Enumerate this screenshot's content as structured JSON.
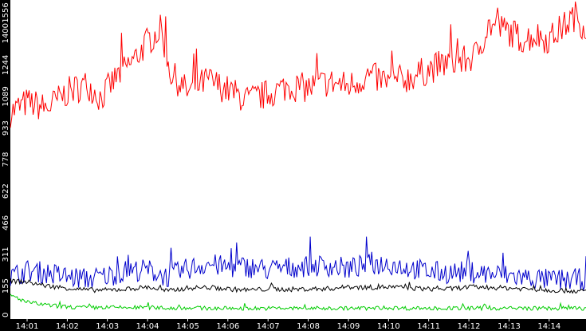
{
  "chart_data": {
    "type": "line",
    "title": "",
    "xlabel": "",
    "ylabel": "",
    "x_range": [
      "14:00:35",
      "14:14:55"
    ],
    "ylim": [
      0,
      1556
    ],
    "y_ticks": [
      0,
      155,
      311,
      466,
      622,
      778,
      933,
      1089,
      1244,
      1400,
      1556
    ],
    "x_ticks": [
      "14:01",
      "14:02",
      "14:03",
      "14:04",
      "14:05",
      "14:06",
      "14:07",
      "14:08",
      "14:09",
      "14:10",
      "14:11",
      "14:12",
      "14:13",
      "14:14"
    ],
    "grid": false,
    "legend": "none",
    "background": "#ffffff",
    "axis_color": "#000000",
    "tick_label_color": "#ffffff",
    "series": [
      {
        "color": "#ff0000",
        "x": [
          "14:00:35",
          "14:01:00",
          "14:01:30",
          "14:02:00",
          "14:02:30",
          "14:02:50",
          "14:03:15",
          "14:03:40",
          "14:04:00",
          "14:04:20",
          "14:04:35",
          "14:05:00",
          "14:05:30",
          "14:06:00",
          "14:06:30",
          "14:07:00",
          "14:07:30",
          "14:08:00",
          "14:08:30",
          "14:09:00",
          "14:09:30",
          "14:10:00",
          "14:10:30",
          "14:11:00",
          "14:11:30",
          "14:11:50",
          "14:12:10",
          "14:12:30",
          "14:13:00",
          "14:13:20",
          "14:13:40",
          "14:14:00",
          "14:14:20",
          "14:14:40",
          "14:14:55"
        ],
        "values": [
          1010,
          1060,
          1030,
          1110,
          1150,
          1080,
          1190,
          1270,
          1360,
          1420,
          1200,
          1110,
          1170,
          1120,
          1070,
          1100,
          1140,
          1130,
          1160,
          1140,
          1190,
          1160,
          1180,
          1220,
          1260,
          1260,
          1290,
          1440,
          1410,
          1370,
          1390,
          1370,
          1430,
          1490,
          1420
        ],
        "noise": 75
      },
      {
        "color": "#0000cc",
        "x": [
          "14:00:35",
          "14:01:00",
          "14:01:30",
          "14:02:00",
          "14:02:30",
          "14:03:00",
          "14:03:30",
          "14:04:00",
          "14:04:30",
          "14:05:00",
          "14:05:30",
          "14:06:00",
          "14:06:30",
          "14:07:00",
          "14:07:30",
          "14:08:00",
          "14:08:30",
          "14:09:00",
          "14:09:30",
          "14:10:00",
          "14:10:30",
          "14:11:00",
          "14:11:30",
          "14:12:00",
          "14:12:30",
          "14:13:00",
          "14:13:30",
          "14:14:00",
          "14:14:30",
          "14:14:55"
        ],
        "values": [
          200,
          230,
          220,
          200,
          190,
          205,
          230,
          235,
          200,
          240,
          265,
          245,
          250,
          235,
          245,
          255,
          255,
          240,
          260,
          265,
          245,
          225,
          220,
          225,
          215,
          205,
          195,
          185,
          185,
          190
        ],
        "noise": 55
      },
      {
        "color": "#000000",
        "x": [
          "14:00:35",
          "14:01:00",
          "14:01:30",
          "14:02:00",
          "14:02:30",
          "14:03:00",
          "14:03:30",
          "14:04:00",
          "14:04:30",
          "14:05:00",
          "14:05:30",
          "14:06:00",
          "14:06:30",
          "14:07:00",
          "14:07:30",
          "14:08:00",
          "14:08:30",
          "14:09:00",
          "14:09:30",
          "14:10:00",
          "14:10:30",
          "14:11:00",
          "14:11:30",
          "14:12:00",
          "14:12:30",
          "14:13:00",
          "14:13:30",
          "14:14:00",
          "14:14:30",
          "14:14:55"
        ],
        "values": [
          180,
          175,
          155,
          145,
          135,
          135,
          140,
          150,
          130,
          145,
          148,
          140,
          135,
          140,
          138,
          140,
          142,
          150,
          148,
          150,
          145,
          140,
          140,
          150,
          148,
          145,
          140,
          135,
          132,
          128
        ],
        "noise": 12
      },
      {
        "color": "#00cc00",
        "x": [
          "14:00:35",
          "14:01:00",
          "14:01:30",
          "14:02:00",
          "14:02:30",
          "14:03:00",
          "14:03:30",
          "14:04:00",
          "14:04:30",
          "14:05:00",
          "14:05:30",
          "14:06:00",
          "14:06:30",
          "14:07:00",
          "14:07:30",
          "14:08:00",
          "14:08:30",
          "14:09:00",
          "14:09:30",
          "14:10:00",
          "14:10:30",
          "14:11:00",
          "14:11:30",
          "14:12:00",
          "14:12:30",
          "14:13:00",
          "14:13:30",
          "14:14:00",
          "14:14:30",
          "14:14:55"
        ],
        "values": [
          110,
          75,
          60,
          52,
          48,
          50,
          48,
          50,
          45,
          48,
          45,
          45,
          45,
          45,
          45,
          45,
          45,
          45,
          45,
          48,
          45,
          45,
          45,
          45,
          45,
          45,
          45,
          45,
          45,
          45
        ],
        "noise": 10
      }
    ]
  }
}
